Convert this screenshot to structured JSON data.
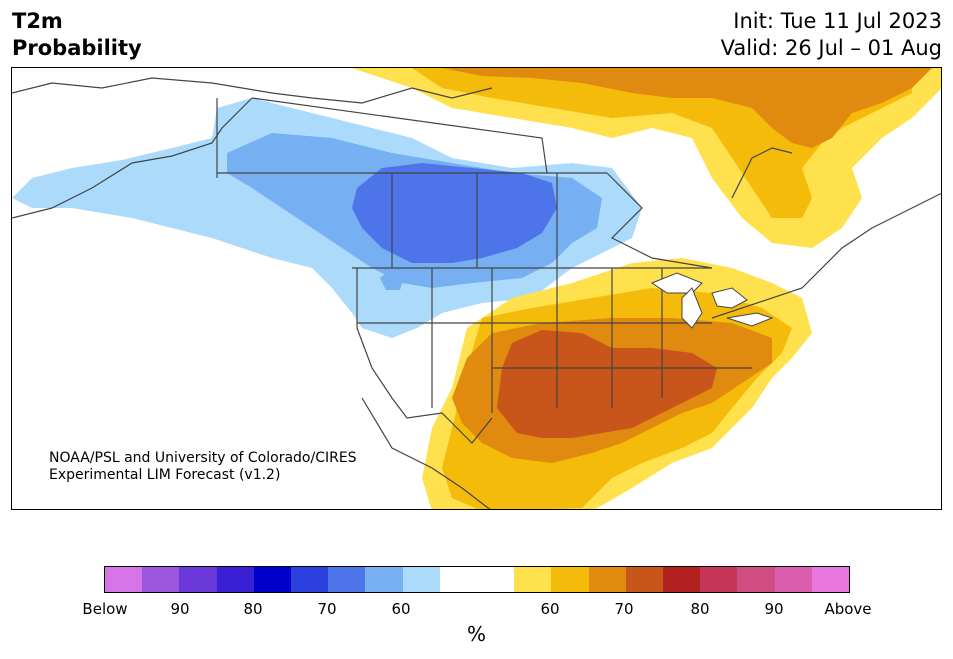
{
  "header": {
    "title_line1": "T2m",
    "title_line2": "Probability",
    "init": "Init: Tue 11 Jul 2023",
    "valid": "Valid: 26 Jul – 01 Aug"
  },
  "credit": {
    "line1": "NOAA/PSL and University of Colorado/CIRES",
    "line2": "Experimental LIM Forecast (v1.2)"
  },
  "colorbar": {
    "colors": [
      "#d674e8",
      "#9b55de",
      "#6a38d9",
      "#3a1fd4",
      "#0000cd",
      "#2a3fdb",
      "#4e74e9",
      "#77b0f2",
      "#acdafb",
      "#ffffff",
      "#ffffff",
      "#ffe04d",
      "#f5bb0a",
      "#e08a10",
      "#c8551a",
      "#b2211f",
      "#c43556",
      "#d04d82",
      "#dc5eae",
      "#e878dd"
    ],
    "ticks": [
      "Below",
      "90",
      "80",
      "70",
      "60",
      "60",
      "70",
      "80",
      "90",
      "Above"
    ],
    "units": "%"
  },
  "map_colors": {
    "light_blue": "#acdafb",
    "mid_blue": "#77b0f2",
    "dark_blue": "#4e74e9",
    "yellow": "#ffe04d",
    "gold": "#f5bb0a",
    "orange": "#e08a10",
    "dark_orange": "#c8551a",
    "border": "#444444"
  }
}
